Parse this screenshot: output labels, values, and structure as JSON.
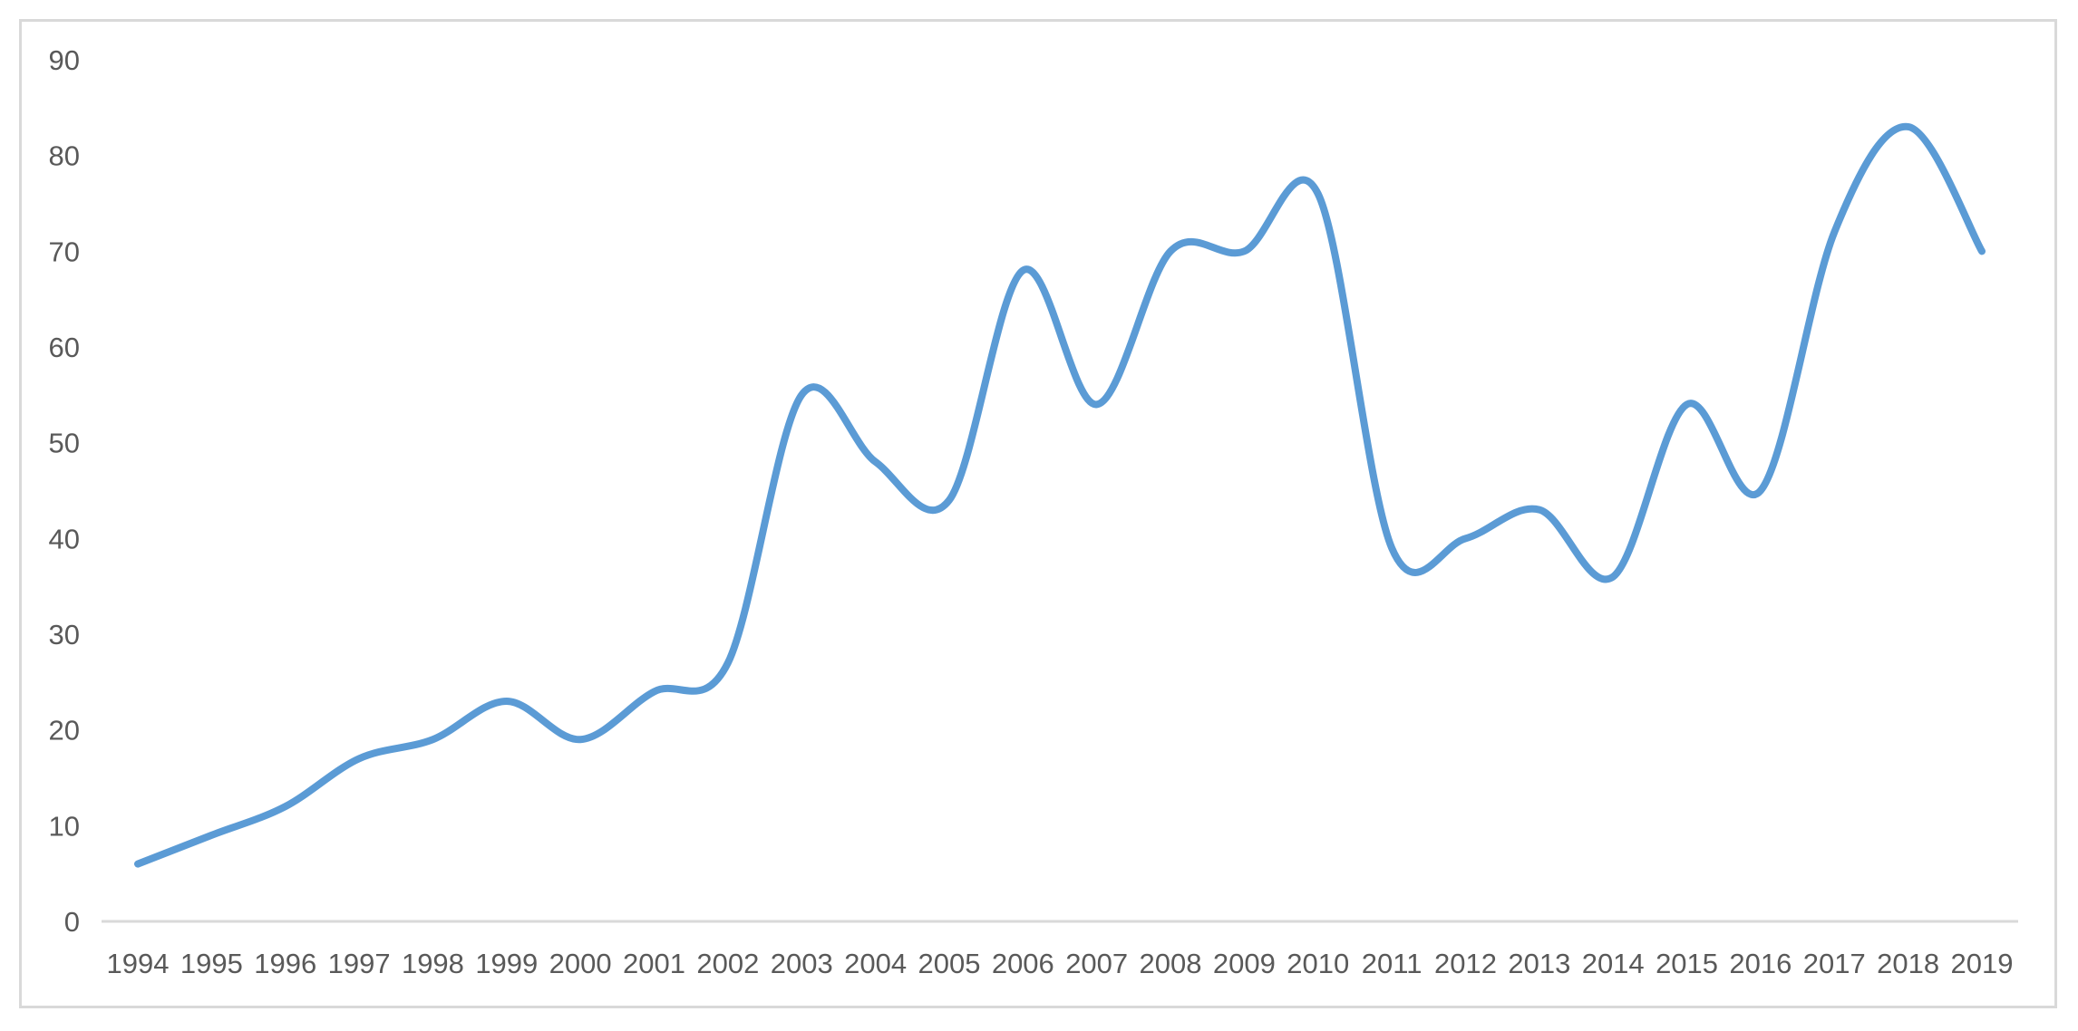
{
  "chart_data": {
    "type": "line",
    "title": "",
    "xlabel": "",
    "ylabel": "",
    "x": [
      "1994",
      "1995",
      "1996",
      "1997",
      "1998",
      "1999",
      "2000",
      "2001",
      "2002",
      "2003",
      "2004",
      "2005",
      "2006",
      "2007",
      "2008",
      "2009",
      "2010",
      "2011",
      "2012",
      "2013",
      "2014",
      "2015",
      "2016",
      "2017",
      "2018",
      "2019"
    ],
    "series": [
      {
        "name": "",
        "values": [
          6,
          9,
          12,
          17,
          19,
          23,
          19,
          24,
          27,
          55,
          48,
          44,
          68,
          54,
          70,
          70,
          76,
          39,
          40,
          43,
          36,
          54,
          45,
          72,
          83,
          70
        ],
        "color": "#5b9bd5"
      }
    ],
    "ylim": [
      0,
      90
    ],
    "yticks": [
      0,
      10,
      20,
      30,
      40,
      50,
      60,
      70,
      80,
      90
    ],
    "grid": false,
    "legend": "none",
    "smooth": true
  }
}
